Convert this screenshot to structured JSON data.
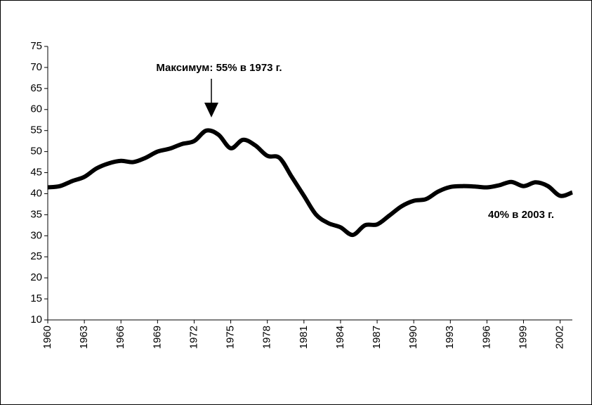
{
  "chart_data": {
    "type": "line",
    "annotations": [
      "Максимум: 55% в 1973 г.",
      "40% в 2003 г."
    ],
    "x": [
      1960,
      1961,
      1962,
      1963,
      1964,
      1965,
      1966,
      1967,
      1968,
      1969,
      1970,
      1971,
      1972,
      1973,
      1974,
      1975,
      1976,
      1977,
      1978,
      1979,
      1980,
      1981,
      1982,
      1983,
      1984,
      1985,
      1986,
      1987,
      1988,
      1989,
      1990,
      1991,
      1992,
      1993,
      1994,
      1995,
      1996,
      1997,
      1998,
      1999,
      2000,
      2001,
      2002,
      2003
    ],
    "values": [
      41.5,
      41.8,
      43,
      44,
      46,
      47.2,
      47.8,
      47.5,
      48.5,
      50,
      50.7,
      51.8,
      52.5,
      55,
      54,
      50.8,
      52.8,
      51.5,
      49,
      48.5,
      44,
      39.5,
      35,
      33,
      32,
      30.2,
      32.5,
      32.7,
      34.8,
      37,
      38.3,
      38.7,
      40.5,
      41.6,
      41.8,
      41.7,
      41.5,
      42,
      42.8,
      41.8,
      42.7,
      41.8,
      39.5,
      40.3
    ],
    "color": "#000000",
    "xlim": [
      1960,
      2003
    ],
    "xticks": [
      1960,
      1963,
      1966,
      1969,
      1972,
      1975,
      1978,
      1981,
      1984,
      1987,
      1990,
      1993,
      1996,
      1999,
      2002
    ],
    "ylim": [
      10,
      75
    ],
    "yticks": [
      10,
      15,
      20,
      25,
      30,
      35,
      40,
      45,
      50,
      55,
      60,
      65,
      70,
      75
    ]
  }
}
